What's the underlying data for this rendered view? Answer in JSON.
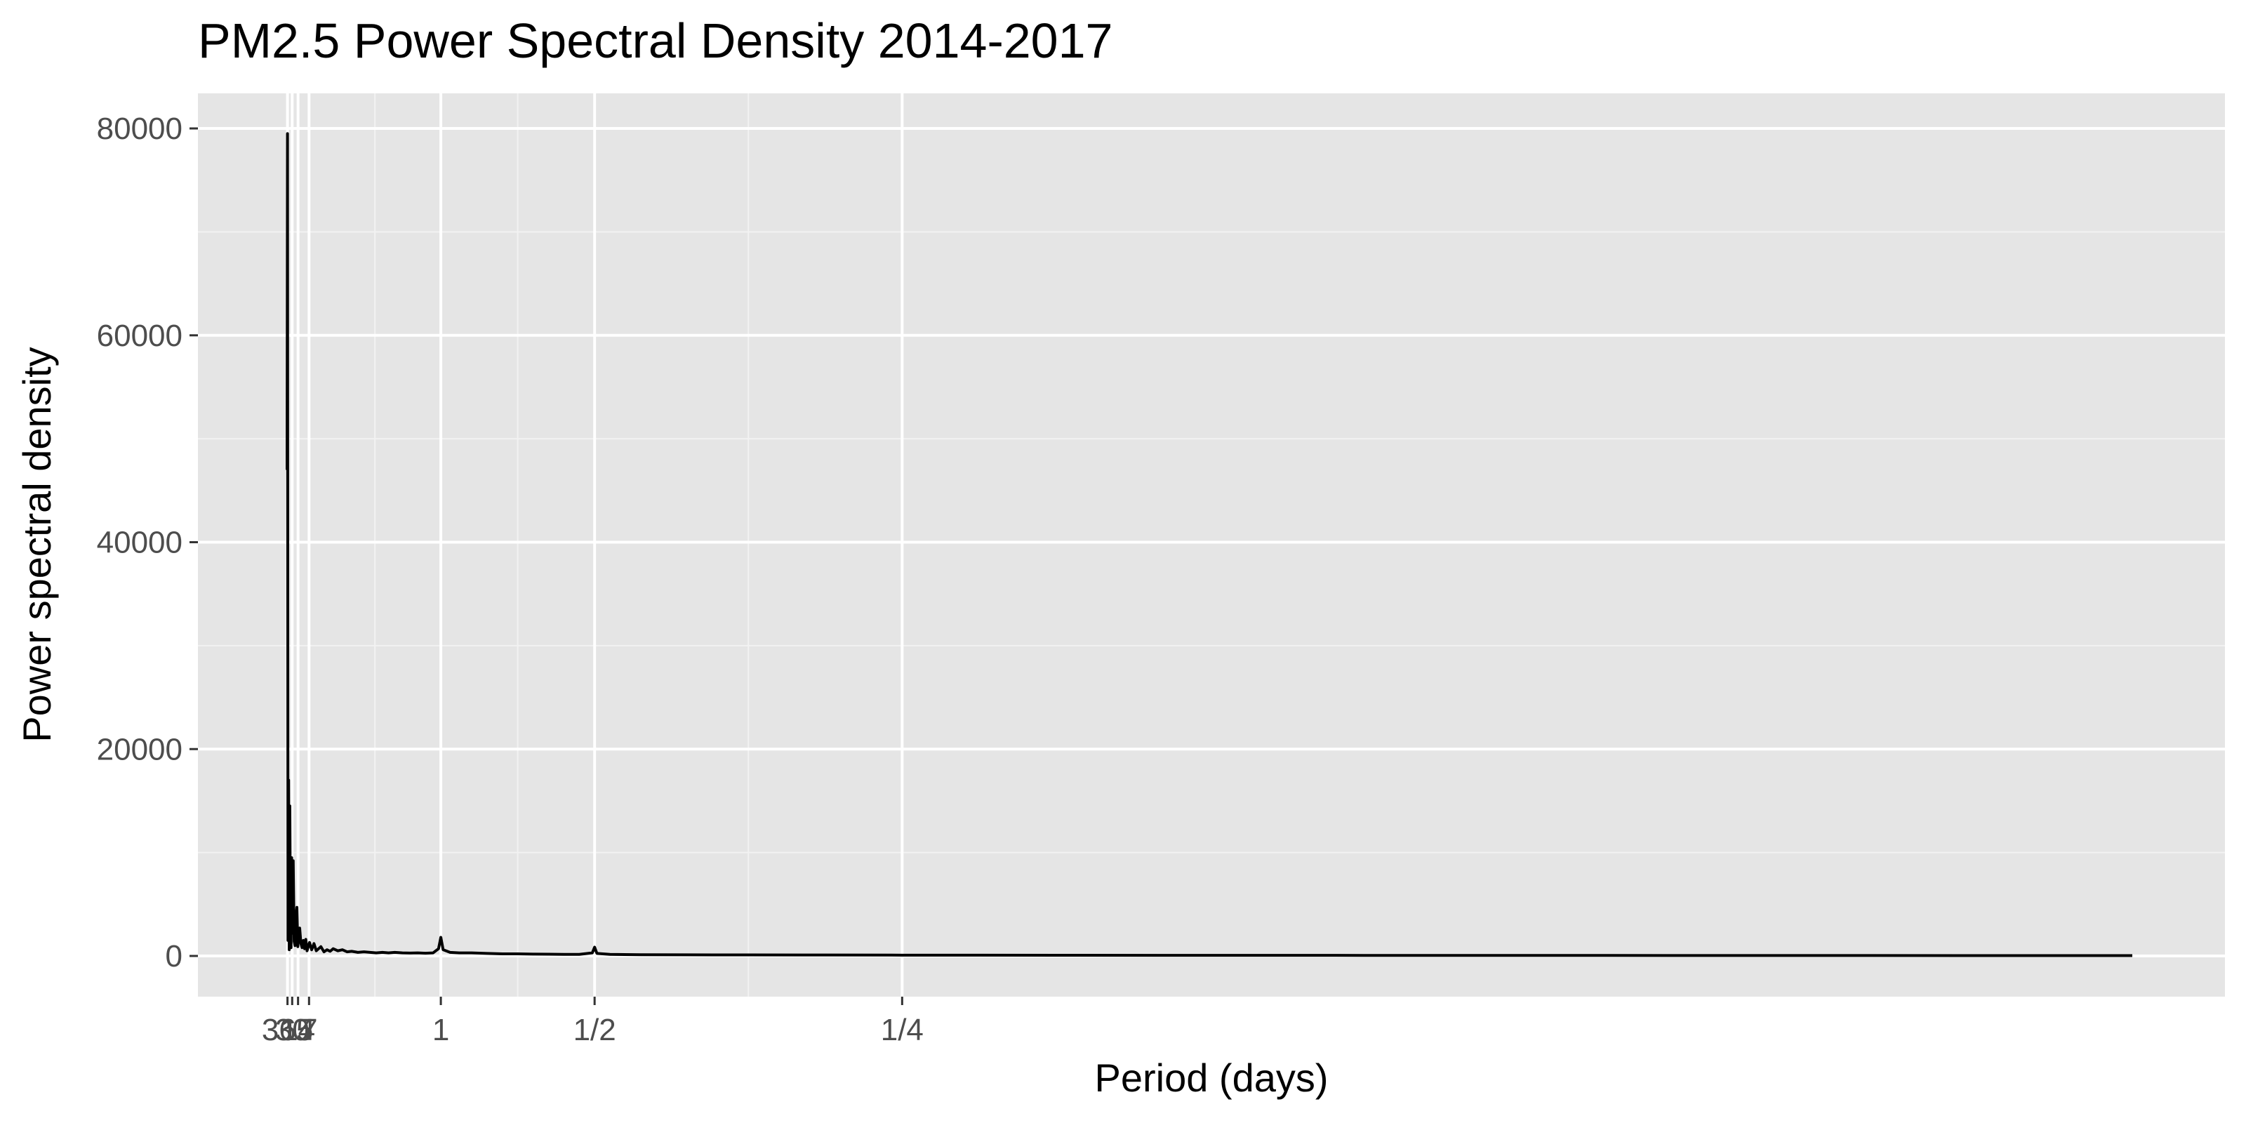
{
  "chart_data": {
    "type": "line",
    "title": "PM2.5 Power Spectral Density 2014-2017",
    "xlabel": "Period (days)",
    "ylabel": "Power spectral density",
    "x_axis_kind": "frequency (cycles per day), tick labels show period",
    "xlim": [
      0,
      12
    ],
    "ylim": [
      0,
      80000
    ],
    "x_ticks": [
      {
        "value": 0.00274,
        "label": "365"
      },
      {
        "value": 0.0333,
        "label": "30"
      },
      {
        "value": 0.0714,
        "label": "14"
      },
      {
        "value": 0.1429,
        "label": "7"
      },
      {
        "value": 1,
        "label": "1"
      },
      {
        "value": 2,
        "label": "1/2"
      },
      {
        "value": 4,
        "label": "1/4"
      }
    ],
    "x_minor_grid": [
      0.5714,
      1.5,
      3
    ],
    "y_ticks": [
      0,
      20000,
      40000,
      60000,
      80000
    ],
    "y_tick_labels": [
      "0",
      "20000",
      "40000",
      "60000",
      "80000"
    ],
    "grid": true,
    "series": [
      {
        "color": "#000000",
        "x": [
          0.0,
          0.00274,
          0.006,
          0.01,
          0.014,
          0.018,
          0.022,
          0.026,
          0.03,
          0.034,
          0.04,
          0.046,
          0.052,
          0.058,
          0.064,
          0.07,
          0.076,
          0.082,
          0.09,
          0.098,
          0.106,
          0.114,
          0.122,
          0.13,
          0.138,
          0.146,
          0.16,
          0.175,
          0.19,
          0.205,
          0.22,
          0.24,
          0.26,
          0.28,
          0.3,
          0.33,
          0.36,
          0.39,
          0.42,
          0.46,
          0.5,
          0.54,
          0.58,
          0.62,
          0.66,
          0.7,
          0.75,
          0.8,
          0.85,
          0.9,
          0.95,
          0.985,
          1.0,
          1.015,
          1.06,
          1.12,
          1.2,
          1.3,
          1.4,
          1.5,
          1.6,
          1.7,
          1.8,
          1.9,
          1.985,
          2.0,
          2.015,
          2.1,
          2.3,
          2.6,
          3.0,
          3.5,
          4.0,
          5.0,
          6.0,
          7.0,
          8.0,
          9.0,
          10.0,
          11.0,
          12.0
        ],
        "y": [
          47000,
          79500,
          1500,
          17000,
          600,
          14500,
          3000,
          800,
          9500,
          2200,
          9200,
          1400,
          1000,
          3800,
          4700,
          900,
          2200,
          2700,
          1200,
          800,
          1500,
          700,
          1600,
          500,
          900,
          1300,
          600,
          1200,
          500,
          700,
          900,
          400,
          600,
          450,
          700,
          500,
          600,
          400,
          450,
          350,
          400,
          350,
          300,
          350,
          300,
          350,
          300,
          280,
          300,
          260,
          300,
          700,
          1800,
          600,
          350,
          300,
          300,
          250,
          200,
          200,
          180,
          170,
          150,
          150,
          300,
          850,
          250,
          150,
          120,
          110,
          100,
          90,
          80,
          70,
          60,
          55,
          50,
          45,
          40,
          35,
          30
        ]
      }
    ]
  }
}
